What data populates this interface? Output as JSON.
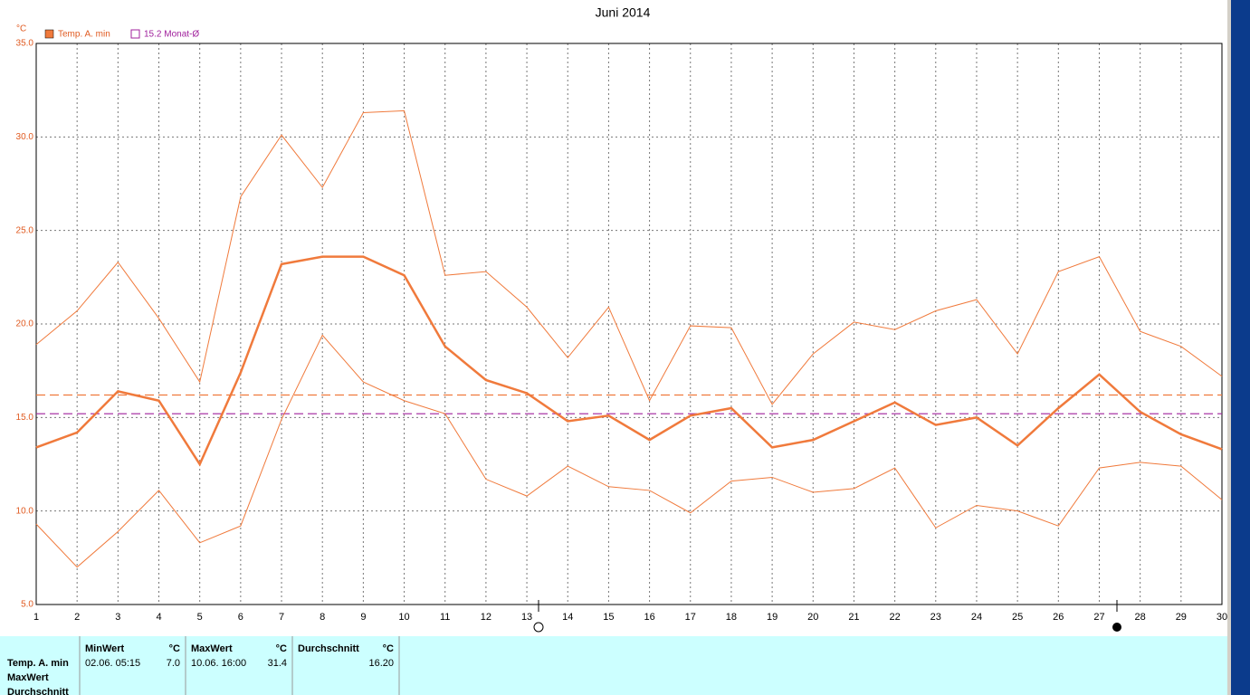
{
  "chart_data": {
    "type": "line",
    "title": "Juni 2014",
    "ylabel": "°C",
    "x": [
      1,
      2,
      3,
      4,
      5,
      6,
      7,
      8,
      9,
      10,
      11,
      12,
      13,
      14,
      15,
      16,
      17,
      18,
      19,
      20,
      21,
      22,
      23,
      24,
      25,
      26,
      27,
      28,
      29,
      30
    ],
    "xlim": [
      1,
      30
    ],
    "xticks": [
      1,
      2,
      3,
      4,
      5,
      6,
      7,
      8,
      9,
      10,
      11,
      12,
      13,
      14,
      15,
      16,
      17,
      18,
      19,
      20,
      21,
      22,
      23,
      24,
      25,
      26,
      27,
      28,
      29,
      30
    ],
    "ylim": [
      5,
      35
    ],
    "yticks": [
      {
        "value": 5,
        "label": "5.0"
      },
      {
        "value": 10,
        "label": "10.0"
      },
      {
        "value": 15,
        "label": "15.0"
      },
      {
        "value": 20,
        "label": "20.0"
      },
      {
        "value": 25,
        "label": "25.0"
      },
      {
        "value": 30,
        "label": "30.0"
      },
      {
        "value": 35,
        "label": "35.0"
      }
    ],
    "grid": true,
    "series": [
      {
        "name": "Temp. A. min",
        "color": "#f07a3c",
        "line_width": 2.5,
        "values": [
          13.4,
          14.2,
          16.4,
          15.9,
          12.5,
          17.4,
          23.2,
          23.6,
          23.6,
          22.6,
          18.8,
          17.0,
          16.3,
          14.8,
          15.1,
          13.8,
          15.1,
          15.5,
          13.4,
          13.8,
          14.8,
          15.8,
          14.6,
          15.0,
          13.5,
          15.5,
          17.3,
          15.3,
          14.1,
          13.3
        ]
      },
      {
        "color": "#f07a3c",
        "line_width": 1,
        "values": [
          18.9,
          20.7,
          23.3,
          20.3,
          16.9,
          26.8,
          30.1,
          27.3,
          31.3,
          31.4,
          22.6,
          22.8,
          20.9,
          18.2,
          20.9,
          15.9,
          19.9,
          19.8,
          15.7,
          18.4,
          20.1,
          19.7,
          20.7,
          21.3,
          18.4,
          22.8,
          23.6,
          19.6,
          18.8,
          17.2
        ]
      },
      {
        "color": "#f07a3c",
        "line_width": 1,
        "values": [
          9.3,
          7.0,
          8.9,
          11.1,
          8.3,
          9.2,
          14.9,
          19.4,
          16.9,
          15.9,
          15.2,
          11.7,
          10.8,
          12.4,
          11.3,
          11.1,
          9.9,
          11.6,
          11.8,
          11.0,
          11.2,
          12.3,
          9.1,
          10.3,
          10.0,
          9.2,
          12.3,
          12.6,
          12.4,
          10.6
        ]
      }
    ],
    "hlines": [
      {
        "name": "15.2 Monat-Ø",
        "value": 15.2,
        "color": "#a0209c"
      },
      {
        "value": 16.2,
        "color": "#f07a3c"
      }
    ]
  },
  "summary_table": {
    "row_labels": [
      "Temp. A. min",
      "MaxWert",
      "Durchschnitt"
    ],
    "columns": [
      {
        "header": "MinWert",
        "unit": "°C",
        "time": "02.06.  05:15",
        "value": "7.0"
      },
      {
        "header": "MaxWert",
        "unit": "°C",
        "time": "10.06.  16:00",
        "value": "31.4"
      },
      {
        "header": "Durchschnitt",
        "unit": "°C",
        "value": "16.20"
      }
    ]
  }
}
